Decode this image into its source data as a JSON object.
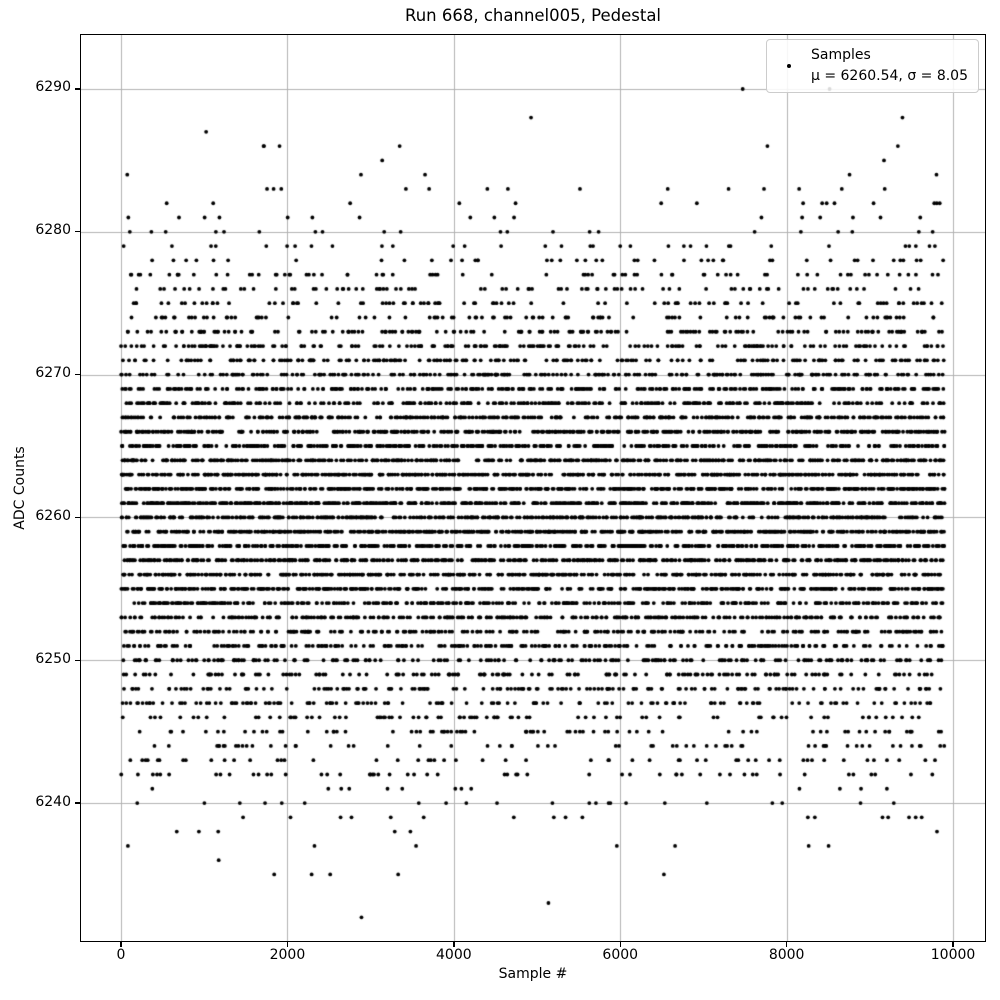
{
  "figure": {
    "title": "Run 668, channel005, Pedestal",
    "xlabel": "Sample #",
    "ylabel": "ADC Counts",
    "legend": {
      "label": "Samples",
      "stats": "μ = 6260.54, σ = 8.05"
    }
  },
  "chart_data": {
    "type": "scatter",
    "title": "Run 668, channel005, Pedestal",
    "xlabel": "Sample #",
    "ylabel": "ADC Counts",
    "grid": true,
    "grid_color": "#b2b2b2",
    "marker_color": "#000000",
    "marker_radius_px": 1.9,
    "legend_position": "upper right",
    "x_ticks": [
      0,
      2000,
      4000,
      6000,
      8000,
      10000
    ],
    "y_ticks": [
      6240,
      6250,
      6260,
      6270,
      6280,
      6290
    ],
    "xlim": [
      -481,
      10384
    ],
    "ylim": [
      6230.34,
      6293.78
    ],
    "series": [
      {
        "name": "Samples",
        "n_points": 9900,
        "x_start": 0,
        "x_step": 1,
        "y_distribution": {
          "type": "gaussian_rounded_to_integer",
          "mu": 6260.54,
          "sigma": 8.05
        },
        "observed_y_min": 6233,
        "observed_y_max": 6291,
        "rng_seed": 668
      }
    ],
    "stats": {
      "mu": 6260.54,
      "sigma": 8.05
    }
  }
}
